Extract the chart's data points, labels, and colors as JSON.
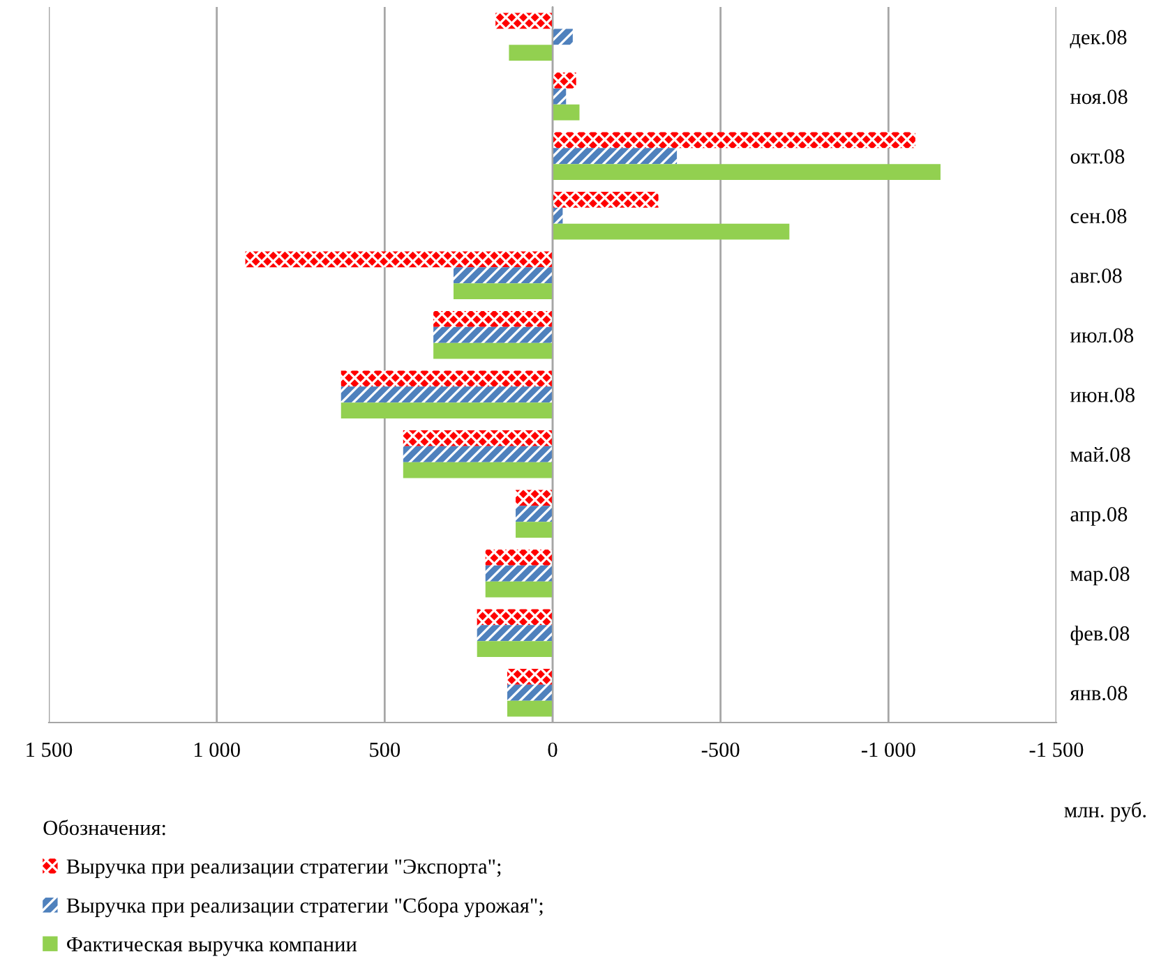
{
  "chart_data": {
    "type": "bar",
    "orientation": "horizontal",
    "categories": [
      "дек.08",
      "ноя.08",
      "окт.08",
      "сен.08",
      "авг.08",
      "июл.08",
      "июн.08",
      "май.08",
      "апр.08",
      "мар.08",
      "фев.08",
      "янв.08"
    ],
    "series": [
      {
        "name": "Выручка при реализации стратегии \"Экспорта\";",
        "color": "#ff0000",
        "values": [
          170,
          -70,
          -1080,
          -315,
          915,
          355,
          630,
          445,
          110,
          200,
          225,
          135
        ]
      },
      {
        "name": "Выручка при реализации стратегии \"Сбора урожая\";",
        "color": "#4f81bd",
        "values": [
          -60,
          -40,
          -370,
          -30,
          295,
          355,
          630,
          445,
          110,
          200,
          225,
          135
        ]
      },
      {
        "name": "Фактическая выручка компании",
        "color": "#92d050",
        "values": [
          130,
          -80,
          -1155,
          -705,
          295,
          355,
          630,
          445,
          110,
          200,
          225,
          135
        ]
      }
    ],
    "xlim": [
      1500,
      -1500
    ],
    "xticks": [
      {
        "value": 1500,
        "label": "1 500"
      },
      {
        "value": 1000,
        "label": "1 000"
      },
      500,
      0,
      -500,
      {
        "value": -1000,
        "label": "-1 000"
      },
      {
        "value": -1500,
        "label": "-1 500"
      }
    ],
    "xlabel": "млн. руб.",
    "legend_title": "Обозначения:",
    "legend": "bottom",
    "grid": "x"
  }
}
